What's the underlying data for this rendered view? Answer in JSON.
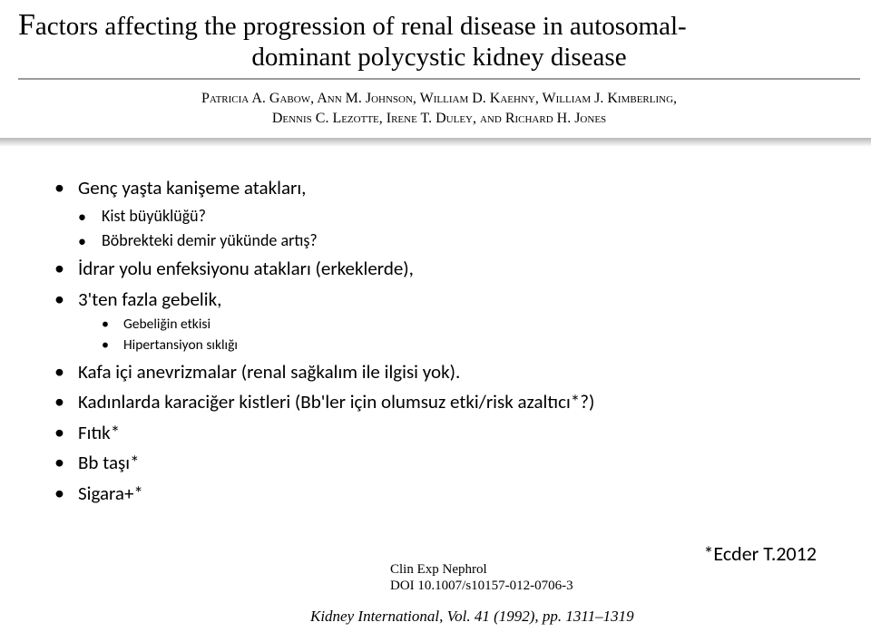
{
  "header": {
    "title_line1_prefix": "F",
    "title_line1_rest": "actors affecting the progression of renal disease in autosomal-",
    "title_line2": "dominant polycystic kidney disease",
    "authors_line1": "Patricia A. Gabow, Ann M. Johnson, William D. Kaehny, William J. Kimberling,",
    "authors_line2": "Dennis C. Lezotte, Irene T. Duley, and Richard H. Jones"
  },
  "bullets": {
    "b1": "Genç yaşta kanişeme atakları,",
    "b1_sub1": "Kist büyüklüğü?",
    "b1_sub2": "Böbrekteki demir yükünde artış?",
    "b2": "İdrar yolu enfeksiyonu atakları (erkeklerde),",
    "b3": "3'ten fazla gebelik,",
    "b3_sub1": "Gebeliğin etkisi",
    "b3_sub2": "Hipertansiyon sıklığı",
    "b4": "Kafa içi anevrizmalar (renal sağkalım ile ilgisi yok).",
    "b5": "Kadınlarda karaciğer kistleri (Bb'ler için olumsuz etki/risk azaltıcı*?)",
    "b6": "Fıtık*",
    "b7": "Bb taşı*",
    "b8": "Sigara+*"
  },
  "footer": {
    "journal1": "Clin Exp Nephrol",
    "journal2": "DOI 10.1007/s10157-012-0706-3",
    "citation": "*Ecder T.2012",
    "kidney_ital": "Kidney International, Vol. 41 (1992), pp.",
    "kidney_pages": " 1311–1319"
  },
  "style": {
    "bg": "#ffffff",
    "text": "#000000",
    "rule_color": "#9b9b9b",
    "title_font": "Georgia",
    "body_font": "Calibri",
    "title_size_pt": 22,
    "body_size_pt": 16
  }
}
